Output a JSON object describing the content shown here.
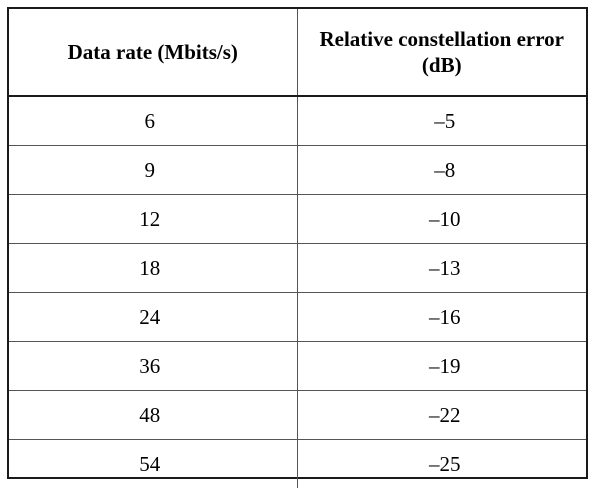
{
  "table": {
    "headers": [
      "Data rate (Mbits/s)",
      "Relative constellation error (dB)"
    ],
    "rows": [
      [
        "6",
        "–5"
      ],
      [
        "9",
        "–8"
      ],
      [
        "12",
        "–10"
      ],
      [
        "18",
        "–13"
      ],
      [
        "24",
        "–16"
      ],
      [
        "36",
        "–19"
      ],
      [
        "48",
        "–22"
      ],
      [
        "54",
        "–25"
      ]
    ]
  }
}
